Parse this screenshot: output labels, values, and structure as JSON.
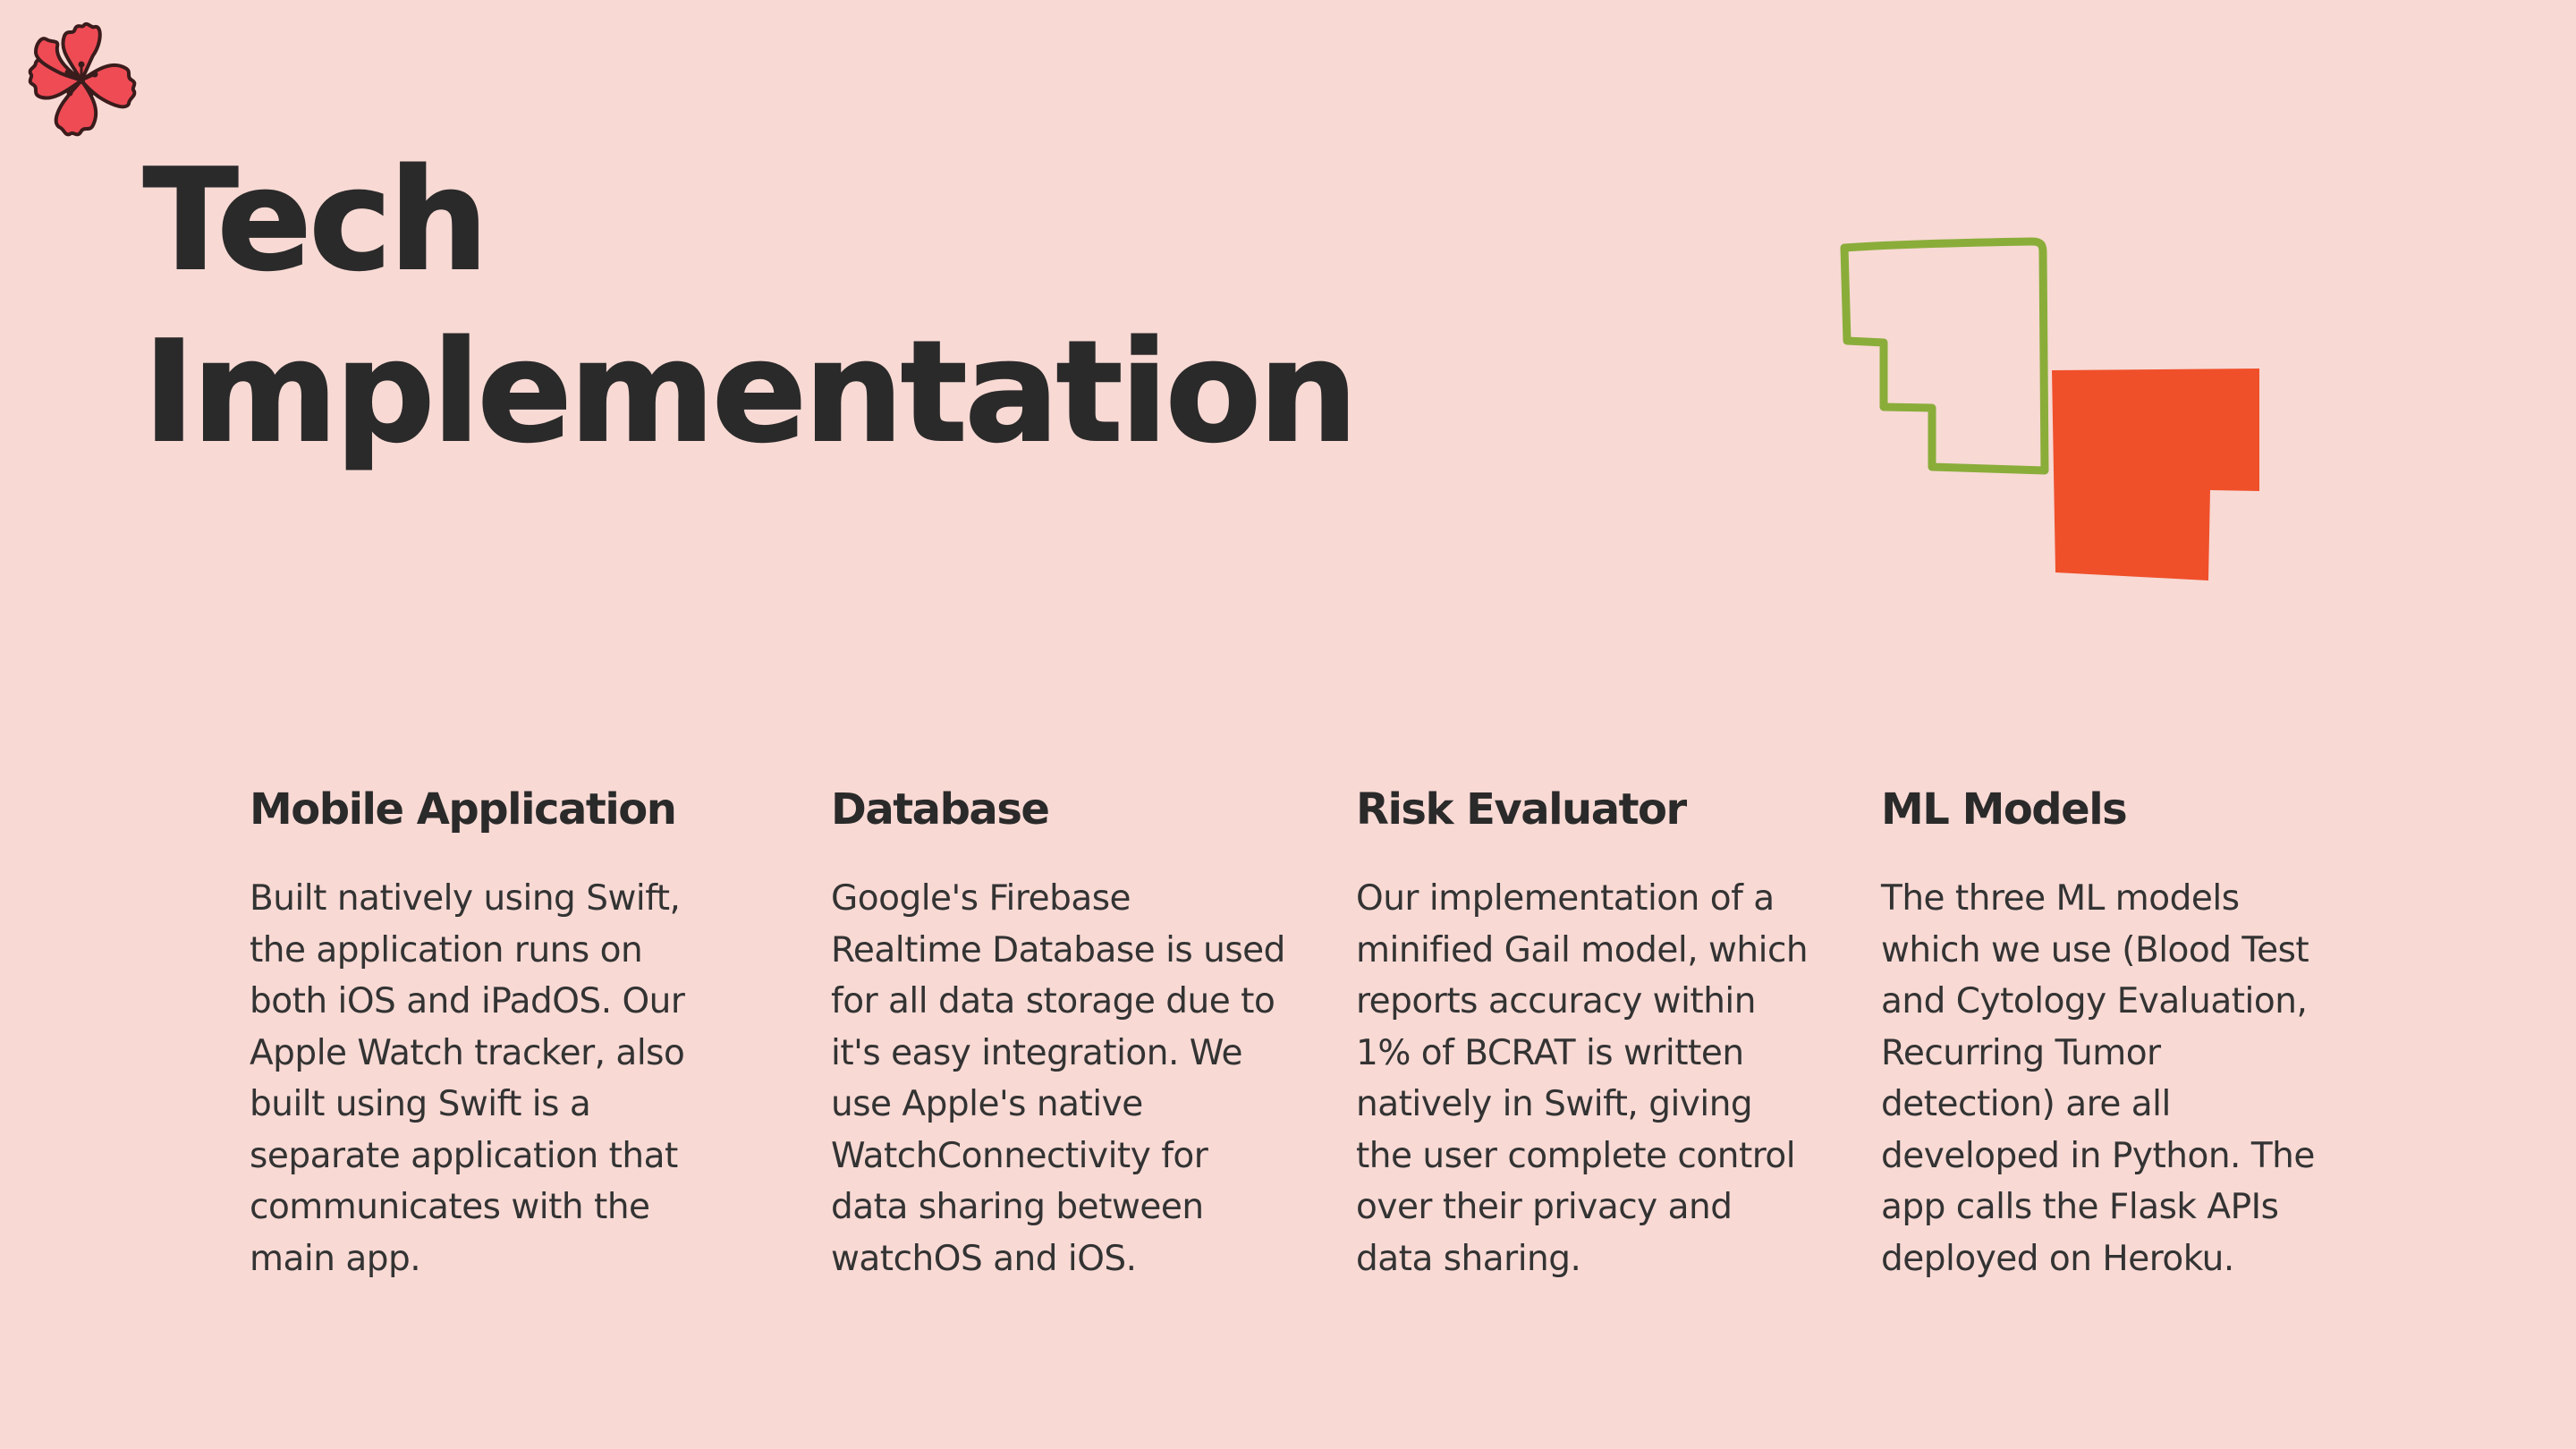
{
  "title": {
    "line1": "Tech",
    "line2": "Implementation"
  },
  "colors": {
    "background": "#f8d9d4",
    "heading": "#2a2a2a",
    "accent_red": "#ef502a",
    "accent_green": "#8aad3a",
    "flower": "#ef4b55"
  },
  "decorations": {
    "top_left": "flower-icon",
    "right": "overlapping-squares-shape"
  },
  "columns": [
    {
      "heading": "Mobile Application",
      "lines": [
        "Built natively using Swift,",
        "the application runs on",
        "both iOS and iPadOS. Our",
        "Apple Watch tracker, also",
        "built using Swift is a",
        "separate application that",
        "communicates with the",
        "main app."
      ]
    },
    {
      "heading": "Database",
      "lines": [
        "Google's Firebase",
        "Realtime Database is used",
        "for all data storage due to",
        "it's easy integration. We",
        "use Apple's native",
        "WatchConnectivity for",
        "data sharing between",
        "watchOS and iOS."
      ]
    },
    {
      "heading": "Risk Evaluator",
      "lines": [
        "Our implementation of a",
        "minified Gail model, which",
        "reports accuracy within",
        "1% of BCRAT is written",
        "natively in Swift, giving",
        "the user complete control",
        "over their privacy and",
        "data sharing."
      ]
    },
    {
      "heading": "ML Models",
      "lines": [
        "The three ML models",
        "which we use (Blood Test",
        "and Cytology Evaluation,",
        "Recurring Tumor",
        "detection) are all",
        "developed in Python. The",
        "app calls the Flask APIs",
        "deployed on Heroku."
      ]
    }
  ]
}
